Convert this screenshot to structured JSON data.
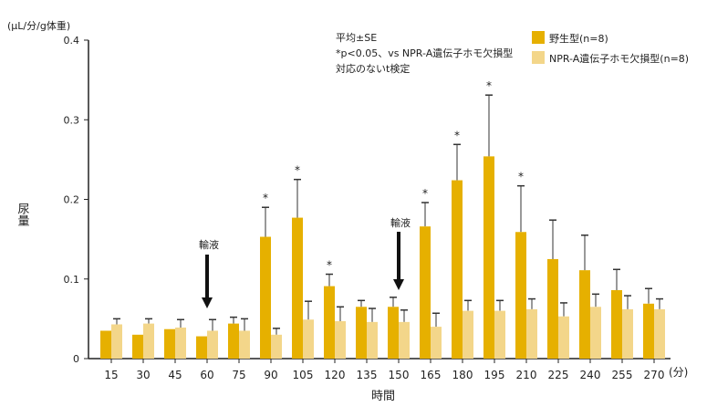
{
  "chart_data": {
    "type": "bar",
    "ylabel": "尿量",
    "yunit": "(μL/分/g体重)",
    "xlabel": "時間",
    "xunit": "(分)",
    "ylim": [
      0,
      0.4
    ],
    "yticks": [
      "0",
      "0.1",
      "0.2",
      "0.3",
      "0.4"
    ],
    "categories": [
      "15",
      "30",
      "45",
      "60",
      "75",
      "90",
      "105",
      "120",
      "135",
      "150",
      "165",
      "180",
      "195",
      "210",
      "225",
      "240",
      "255",
      "270"
    ],
    "series": [
      {
        "name": "野生型(n=8)",
        "color": "#E6B000",
        "values": [
          0.035,
          0.03,
          0.037,
          0.028,
          0.044,
          0.153,
          0.177,
          0.091,
          0.065,
          0.065,
          0.166,
          0.224,
          0.254,
          0.159,
          0.125,
          0.111,
          0.086,
          0.069
        ],
        "se": [
          null,
          null,
          null,
          null,
          0.008,
          0.037,
          0.048,
          0.015,
          0.008,
          0.012,
          0.03,
          0.045,
          0.077,
          0.058,
          0.049,
          0.044,
          0.026,
          0.019
        ]
      },
      {
        "name": "NPR-A遺伝子ホモ欠損型(n=8)",
        "color": "#F3D68A",
        "values": [
          0.043,
          0.044,
          0.039,
          0.035,
          0.035,
          0.03,
          0.049,
          0.047,
          0.046,
          0.046,
          0.04,
          0.06,
          0.06,
          0.062,
          0.053,
          0.065,
          0.062,
          0.062
        ],
        "se": [
          0.007,
          0.006,
          0.01,
          0.014,
          0.015,
          0.008,
          0.023,
          0.018,
          0.017,
          0.015,
          0.017,
          0.013,
          0.013,
          0.013,
          0.017,
          0.016,
          0.017,
          0.013
        ]
      }
    ],
    "significant": [
      "90",
      "105",
      "120",
      "165",
      "180",
      "195",
      "210"
    ],
    "significance_mark": "*",
    "arrows": [
      {
        "at": "60",
        "label": "輸液"
      },
      {
        "at": "150",
        "label": "輸液"
      }
    ],
    "notes": [
      "平均±SE",
      "*p<0.05、vs NPR-A遺伝子ホモ欠損型",
      "対応のないt検定"
    ],
    "legend": "top-right"
  }
}
